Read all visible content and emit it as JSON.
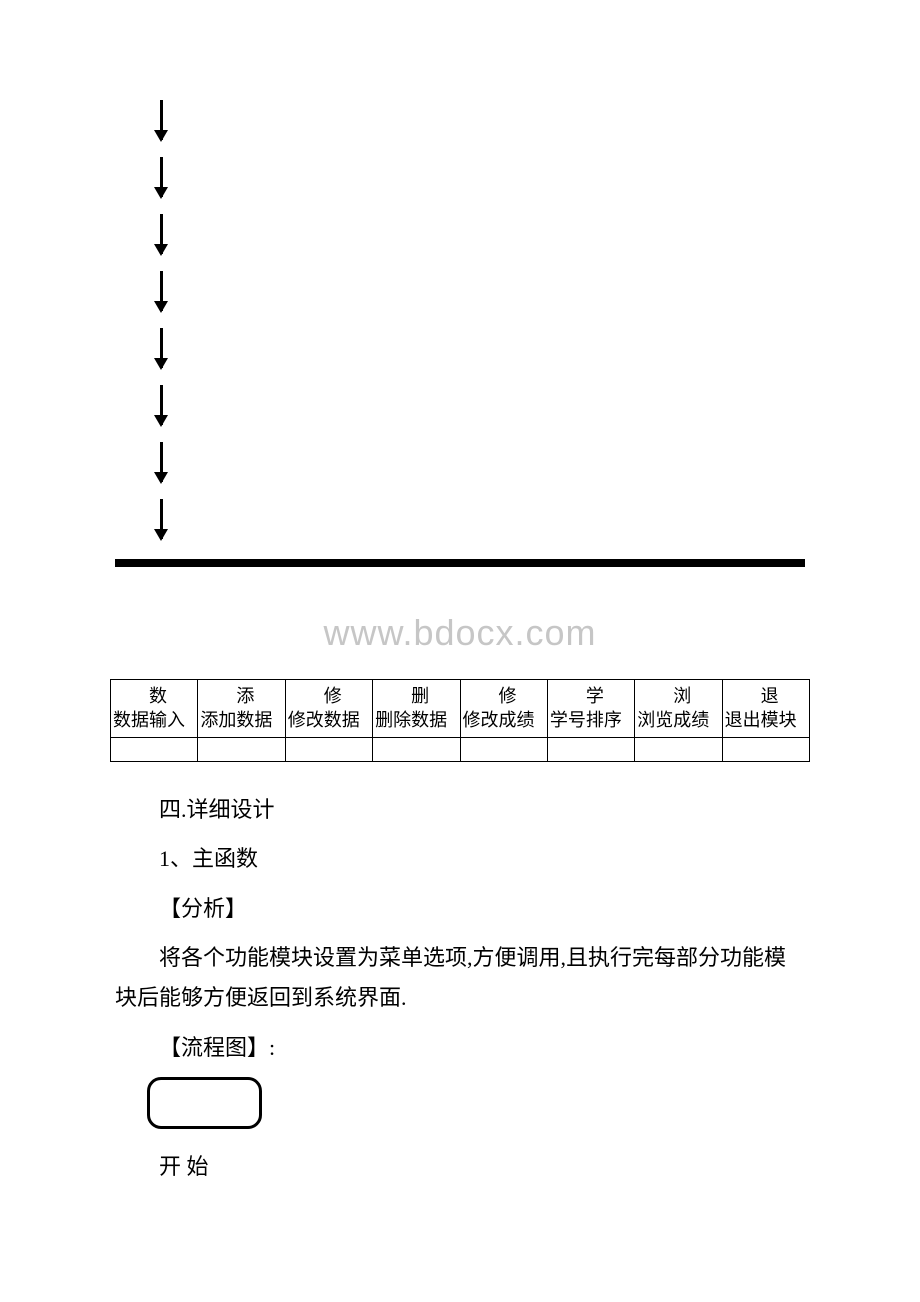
{
  "arrows": {
    "count": 8
  },
  "watermark": "www.bdocx.com",
  "table": {
    "columns": [
      "数据输入",
      "添加数据",
      "修改数据",
      "删除数据",
      "修改成绩",
      "学号排序",
      "浏览成绩",
      "退出模块"
    ]
  },
  "section_title": "四.详细设计",
  "item1_title": "1、主函数",
  "analysis_label": "【分析】",
  "analysis_text": "将各个功能模块设置为菜单选项,方便调用,且执行完每部分功能模块后能够方便返回到系统界面.",
  "flowchart_label": "【流程图】:",
  "start_label": "开 始"
}
